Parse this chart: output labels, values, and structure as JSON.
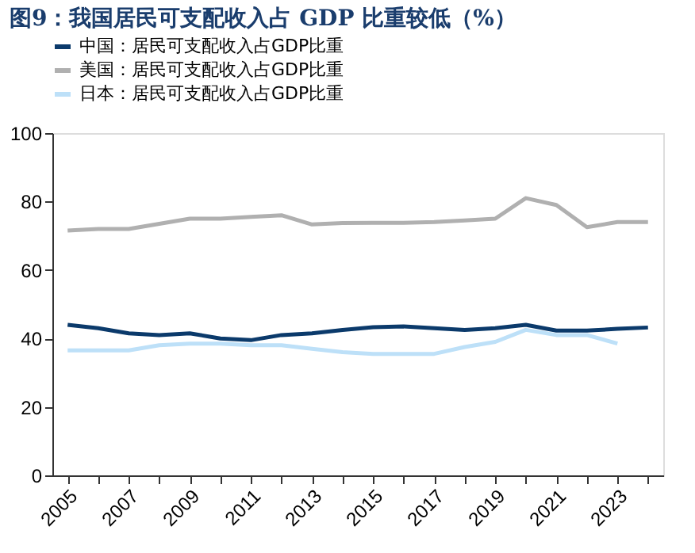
{
  "chart_data": {
    "type": "line",
    "title": "图9：我国居民可支配收入占 GDP 比重较低（%）",
    "categories": [
      "2005",
      null,
      "2007",
      null,
      "2009",
      null,
      "2011",
      null,
      "2013",
      null,
      "2015",
      null,
      "2017",
      null,
      "2019",
      null,
      "2021",
      null,
      "2023",
      null
    ],
    "series": [
      {
        "name": "中国：居民可支配收入占GDP比重",
        "color": "#0b3a6b",
        "values": [
          44,
          43,
          41.5,
          41,
          41.5,
          40,
          39.5,
          41,
          41.5,
          42.5,
          43.3,
          43.5,
          43,
          42.5,
          43,
          44,
          42.3,
          42.3,
          42.8,
          43.2
        ]
      },
      {
        "name": "美国：居民可支配收入占GDP比重",
        "color": "#b0b0b0",
        "values": [
          71.5,
          72,
          72,
          73.5,
          75,
          75,
          75.5,
          76,
          73.3,
          73.7,
          73.8,
          73.8,
          74,
          74.5,
          75,
          81,
          79,
          72.5,
          74,
          74
        ]
      },
      {
        "name": "日本：居民可支配收入占GDP比重",
        "color": "#bde0f8",
        "values": [
          36.5,
          36.5,
          36.5,
          38,
          38.5,
          38.5,
          38,
          38,
          37,
          36,
          35.5,
          35.5,
          35.5,
          37.5,
          39,
          42.5,
          41,
          41,
          38.5,
          null
        ]
      }
    ],
    "ylim": [
      0,
      100
    ],
    "yticks": [
      0,
      20,
      40,
      60,
      80,
      100
    ],
    "grid": false,
    "legend": "top",
    "marker": "none",
    "line_style": "solid"
  }
}
